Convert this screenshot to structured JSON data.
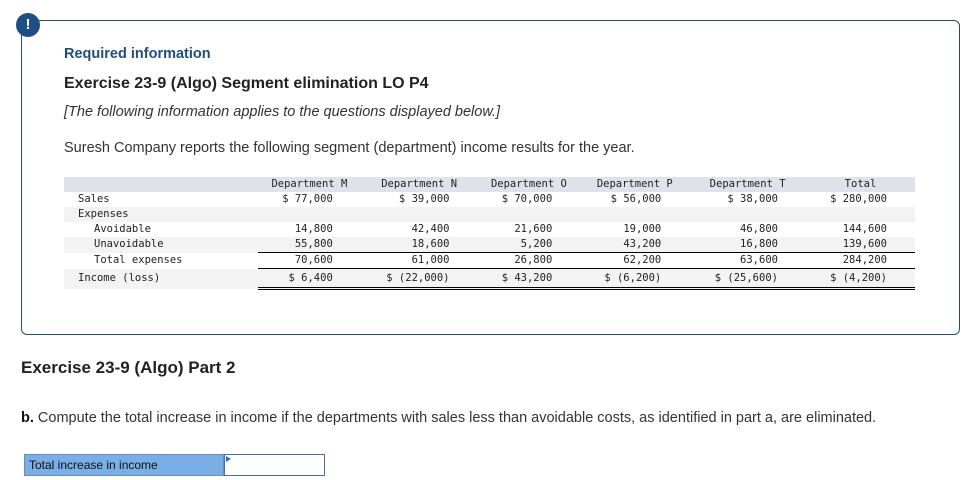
{
  "alert": {
    "icon": "exclamation-icon",
    "glyph": "!"
  },
  "info": {
    "required_label": "Required information",
    "title": "Exercise 23-9 (Algo) Segment elimination LO P4",
    "note": "[The following information applies to the questions displayed below.]",
    "intro": "Suresh Company reports the following segment (department) income results for the year."
  },
  "table": {
    "columns": [
      "",
      "Department M",
      "Department N",
      "Department O",
      "Department P",
      "Department T",
      "Total"
    ],
    "rows": {
      "sales": {
        "label": "Sales",
        "values": [
          "$ 77,000",
          "$ 39,000",
          "$ 70,000",
          "$ 56,000",
          "$ 38,000",
          "$ 280,000"
        ]
      },
      "expenses": {
        "label": "Expenses"
      },
      "avoidable": {
        "label": "Avoidable",
        "values": [
          "14,800",
          "42,400",
          "21,600",
          "19,000",
          "46,800",
          "144,600"
        ]
      },
      "unavoidable": {
        "label": "Unavoidable",
        "values": [
          "55,800",
          "18,600",
          "5,200",
          "43,200",
          "16,800",
          "139,600"
        ]
      },
      "total_expenses": {
        "label": "Total expenses",
        "values": [
          "70,600",
          "61,000",
          "26,800",
          "62,200",
          "63,600",
          "284,200"
        ]
      },
      "income": {
        "label": "Income (loss)",
        "values": [
          "$ 6,400",
          "$ (22,000)",
          "$ 43,200",
          "$ (6,200)",
          "$ (25,600)",
          "$ (4,200)"
        ]
      }
    }
  },
  "part": {
    "title": "Exercise 23-9 (Algo) Part 2",
    "question_prefix": "b.",
    "question_text": " Compute the total increase in income if the departments with sales less than avoidable costs, as identified in part a, are eliminated."
  },
  "answer": {
    "label": "Total increase in income",
    "value": ""
  },
  "colors": {
    "accent": "#1f4e79",
    "answer_label_bg": "#7aaee6",
    "table_header_bg": "#dfe2ea"
  }
}
